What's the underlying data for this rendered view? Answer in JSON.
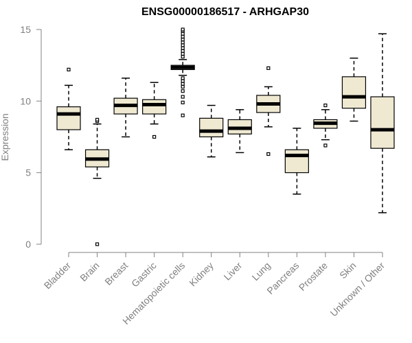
{
  "chart_data": {
    "type": "box",
    "title": "ENSG00000186517 - ARHGAP30",
    "xlabel": "",
    "ylabel": "Expression",
    "ylim": [
      0,
      15
    ],
    "yticks": [
      0,
      5,
      10,
      15
    ],
    "grid": false,
    "box_fill": "#efe9d2",
    "box_stroke": "#000000",
    "axis_color": "#808080",
    "categories": [
      "Bladder",
      "Brain",
      "Breast",
      "Gastric",
      "Hematopoietic cells",
      "Kidney",
      "Liver",
      "Lung",
      "Pancreas",
      "Prostate",
      "Skin",
      "Unknown / Other"
    ],
    "boxes": [
      {
        "category": "Bladder",
        "min": 6.6,
        "q1": 8.0,
        "median": 9.1,
        "q3": 9.6,
        "max": 11.1,
        "outliers": [
          12.2
        ]
      },
      {
        "category": "Brain",
        "min": 4.6,
        "q1": 5.4,
        "median": 5.95,
        "q3": 6.6,
        "max": 8.4,
        "outliers": [
          8.6,
          8.7,
          0.0
        ]
      },
      {
        "category": "Breast",
        "min": 7.5,
        "q1": 9.1,
        "median": 9.7,
        "q3": 10.2,
        "max": 11.6,
        "outliers": []
      },
      {
        "category": "Gastric",
        "min": 8.4,
        "q1": 9.1,
        "median": 9.75,
        "q3": 10.1,
        "max": 11.3,
        "outliers": [
          7.5
        ]
      },
      {
        "category": "Hematopoietic cells",
        "min": 11.8,
        "q1": 12.2,
        "median": 12.35,
        "q3": 12.5,
        "max": 12.9,
        "outliers": [
          13.1,
          13.3,
          13.5,
          13.7,
          13.9,
          14.1,
          14.3,
          14.5,
          14.7,
          14.9,
          15.0,
          11.6,
          11.4,
          11.2,
          11.0,
          10.7,
          10.3,
          9.9,
          9.0
        ]
      },
      {
        "category": "Kidney",
        "min": 6.1,
        "q1": 7.5,
        "median": 7.9,
        "q3": 8.8,
        "max": 9.7,
        "outliers": []
      },
      {
        "category": "Liver",
        "min": 6.4,
        "q1": 7.7,
        "median": 8.1,
        "q3": 8.7,
        "max": 9.4,
        "outliers": []
      },
      {
        "category": "Lung",
        "min": 8.2,
        "q1": 9.2,
        "median": 9.8,
        "q3": 10.4,
        "max": 11.0,
        "outliers": [
          12.3,
          6.3
        ]
      },
      {
        "category": "Pancreas",
        "min": 3.5,
        "q1": 5.0,
        "median": 6.2,
        "q3": 6.6,
        "max": 8.1,
        "outliers": []
      },
      {
        "category": "Prostate",
        "min": 7.3,
        "q1": 8.1,
        "median": 8.45,
        "q3": 8.7,
        "max": 9.4,
        "outliers": [
          9.7,
          6.9
        ]
      },
      {
        "category": "Skin",
        "min": 8.6,
        "q1": 9.5,
        "median": 10.3,
        "q3": 11.7,
        "max": 13.0,
        "outliers": []
      },
      {
        "category": "Unknown / Other",
        "min": 2.2,
        "q1": 6.7,
        "median": 8.0,
        "q3": 10.3,
        "max": 14.7,
        "outliers": []
      }
    ]
  }
}
